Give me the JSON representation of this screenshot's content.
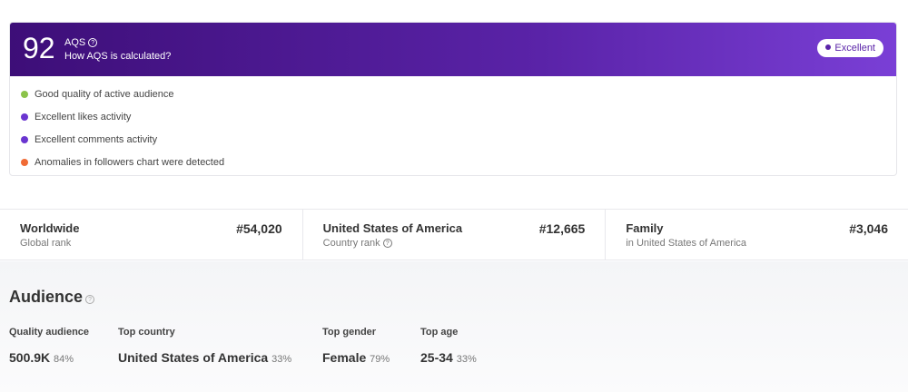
{
  "aqs": {
    "score": 92,
    "label": "AQS",
    "link": "How AQS is calculated?",
    "badge": "Excellent",
    "items": [
      {
        "text": "Good quality of active audience",
        "color": "#8bc34a"
      },
      {
        "text": "Excellent likes activity",
        "color": "#6a35d0"
      },
      {
        "text": "Excellent comments activity",
        "color": "#6a35d0"
      },
      {
        "text": "Anomalies in followers chart were detected",
        "color": "#f06b35"
      }
    ]
  },
  "ranks": [
    {
      "title": "Worldwide",
      "subtitle": "Global rank",
      "rank": "#54,020"
    },
    {
      "title": "United States of America",
      "subtitle": "Country rank",
      "rank": "#12,665"
    },
    {
      "title": "Family",
      "subtitle": "in United States of America",
      "rank": "#3,046"
    }
  ],
  "audience": {
    "title": "Audience",
    "stats": [
      {
        "label": "Quality audience",
        "value": "500.9K",
        "percent": "84%"
      },
      {
        "label": "Top country",
        "value": "United States of America",
        "percent": "33%"
      },
      {
        "label": "Top gender",
        "value": "Female",
        "percent": "79%"
      },
      {
        "label": "Top age",
        "value": "25-34",
        "percent": "33%"
      }
    ]
  }
}
